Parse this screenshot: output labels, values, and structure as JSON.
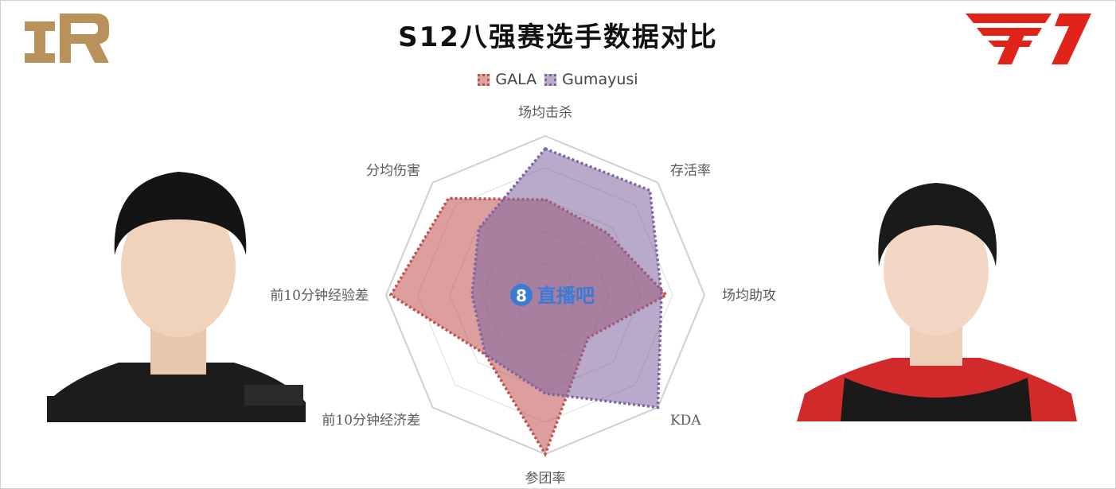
{
  "title": "S12八强赛选手数据对比",
  "legend": [
    {
      "name": "GALA",
      "color": "#c0504d"
    },
    {
      "name": "Gumayusi",
      "color": "#8064a2"
    }
  ],
  "watermark": {
    "text": "直播吧",
    "icon": "circle-8-icon"
  },
  "teams": {
    "left": {
      "logo": "rng-logo",
      "color": "#b8925a"
    },
    "right": {
      "logo": "t1-logo",
      "color": "#e2231a"
    }
  },
  "chart_data": {
    "type": "radar",
    "categories": [
      "场均击杀",
      "存活率",
      "场均助攻",
      "KDA",
      "参团率",
      "前10分钟经济差",
      "前10分钟经验差",
      "分均伤害"
    ],
    "rlim": [
      0,
      1
    ],
    "grid": true,
    "legend_position": "top",
    "series": [
      {
        "name": "GALA",
        "color": "#c0504d",
        "values": [
          0.6,
          0.55,
          0.76,
          0.38,
          1.0,
          0.53,
          0.97,
          0.86
        ]
      },
      {
        "name": "Gumayusi",
        "color": "#8064a2",
        "values": [
          0.92,
          0.93,
          0.73,
          1.0,
          0.62,
          0.53,
          0.46,
          0.59
        ]
      }
    ]
  }
}
